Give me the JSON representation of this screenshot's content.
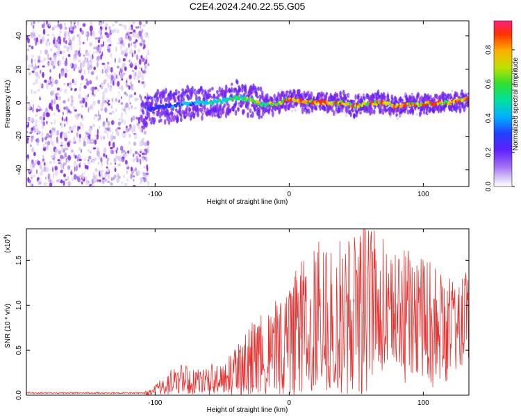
{
  "title": "C2E4.2024.240.22.55.G05",
  "chart_data": [
    {
      "type": "heatmap",
      "xlabel": "Height of straight line (km)",
      "ylabel": "Frequency (Hz)",
      "xlim": [
        -196,
        134
      ],
      "ylim": [
        -50,
        49
      ],
      "xticks": [
        -100,
        0,
        100
      ],
      "yticks": [
        -40,
        -20,
        0,
        20,
        40
      ],
      "noise_region_x": [
        -196,
        -108
      ],
      "signal_track": {
        "x": [
          -110,
          -100,
          -90,
          -80,
          -70,
          -60,
          -50,
          -40,
          -30,
          -20,
          -10,
          0,
          10,
          20,
          30,
          40,
          50,
          60,
          70,
          80,
          90,
          100,
          110,
          120,
          130
        ],
        "frequency": [
          -5,
          -3,
          -2,
          -1,
          0,
          0,
          1,
          3,
          2,
          -1,
          -1,
          2,
          1,
          0,
          0,
          0,
          -2,
          0,
          0,
          -2,
          -1,
          -1,
          0,
          0,
          2
        ]
      },
      "colorbar": {
        "label": "Normalized spectral amplitude",
        "range": [
          0.0,
          0.97
        ],
        "ticks": [
          0.0,
          0.2,
          0.4,
          0.6,
          0.8
        ],
        "tick_labels": [
          "0.0",
          "0.2",
          "0.4",
          "0.6",
          "0.8"
        ],
        "colormap": [
          "#ffffff",
          "#d9c8f5",
          "#8a2be2",
          "#3030ff",
          "#00c8ff",
          "#00e0a0",
          "#30e030",
          "#d0e000",
          "#ffa000",
          "#ff3000",
          "#ff2060"
        ]
      }
    },
    {
      "type": "line",
      "xlabel": "Height of straight line (km)",
      "ylabel": "SNR (10 * v/v)",
      "y_scale_label": "(x10",
      "y_scale_exp": "4",
      "y_scale_close": ")",
      "xlim": [
        -196,
        134
      ],
      "ylim": [
        0,
        1.85
      ],
      "xticks": [
        -100,
        0,
        100
      ],
      "yticks": [
        0.0,
        0.5,
        1.0,
        1.5
      ],
      "ytick_labels": [
        "0.0",
        "0.5",
        "1.0",
        "1.5"
      ],
      "color": "#e8302e",
      "series": [
        {
          "name": "SNR",
          "x": [
            -196,
            -180,
            -160,
            -140,
            -120,
            -105,
            -100,
            -95,
            -90,
            -85,
            -80,
            -75,
            -70,
            -65,
            -60,
            -55,
            -50,
            -45,
            -40,
            -35,
            -30,
            -25,
            -20,
            -15,
            -10,
            -5,
            0,
            5,
            10,
            15,
            20,
            25,
            30,
            35,
            40,
            45,
            50,
            55,
            60,
            65,
            70,
            75,
            80,
            85,
            90,
            95,
            100,
            105,
            110,
            115,
            120,
            125,
            130,
            134
          ],
          "values": [
            0.02,
            0.02,
            0.02,
            0.02,
            0.02,
            0.03,
            0.06,
            0.1,
            0.14,
            0.17,
            0.18,
            0.15,
            0.16,
            0.17,
            0.18,
            0.2,
            0.22,
            0.26,
            0.3,
            0.36,
            0.42,
            0.48,
            0.56,
            0.6,
            0.66,
            0.7,
            0.72,
            0.8,
            0.84,
            0.86,
            0.9,
            0.92,
            0.98,
            1.0,
            1.02,
            1.05,
            1.1,
            1.12,
            1.15,
            1.2,
            1.18,
            1.1,
            1.05,
            1.02,
            1.08,
            1.05,
            1.0,
            0.95,
            0.92,
            0.9,
            0.88,
            0.86,
            0.95,
            1.0
          ],
          "envelope_peak": [
            0.03,
            0.03,
            0.03,
            0.03,
            0.03,
            0.05,
            0.12,
            0.2,
            0.26,
            0.32,
            0.4,
            0.3,
            0.3,
            0.32,
            0.34,
            0.36,
            0.4,
            0.45,
            0.55,
            0.62,
            0.75,
            0.88,
            0.95,
            0.92,
            1.05,
            1.15,
            1.3,
            1.65,
            1.55,
            1.62,
            1.7,
            1.72,
            1.8,
            1.68,
            1.75,
            1.72,
            1.78,
            1.9,
            1.86,
            1.9,
            1.75,
            1.55,
            1.6,
            1.65,
            1.62,
            1.55,
            1.58,
            1.48,
            1.45,
            1.4,
            1.3,
            1.26,
            1.35,
            1.42
          ]
        }
      ]
    }
  ]
}
